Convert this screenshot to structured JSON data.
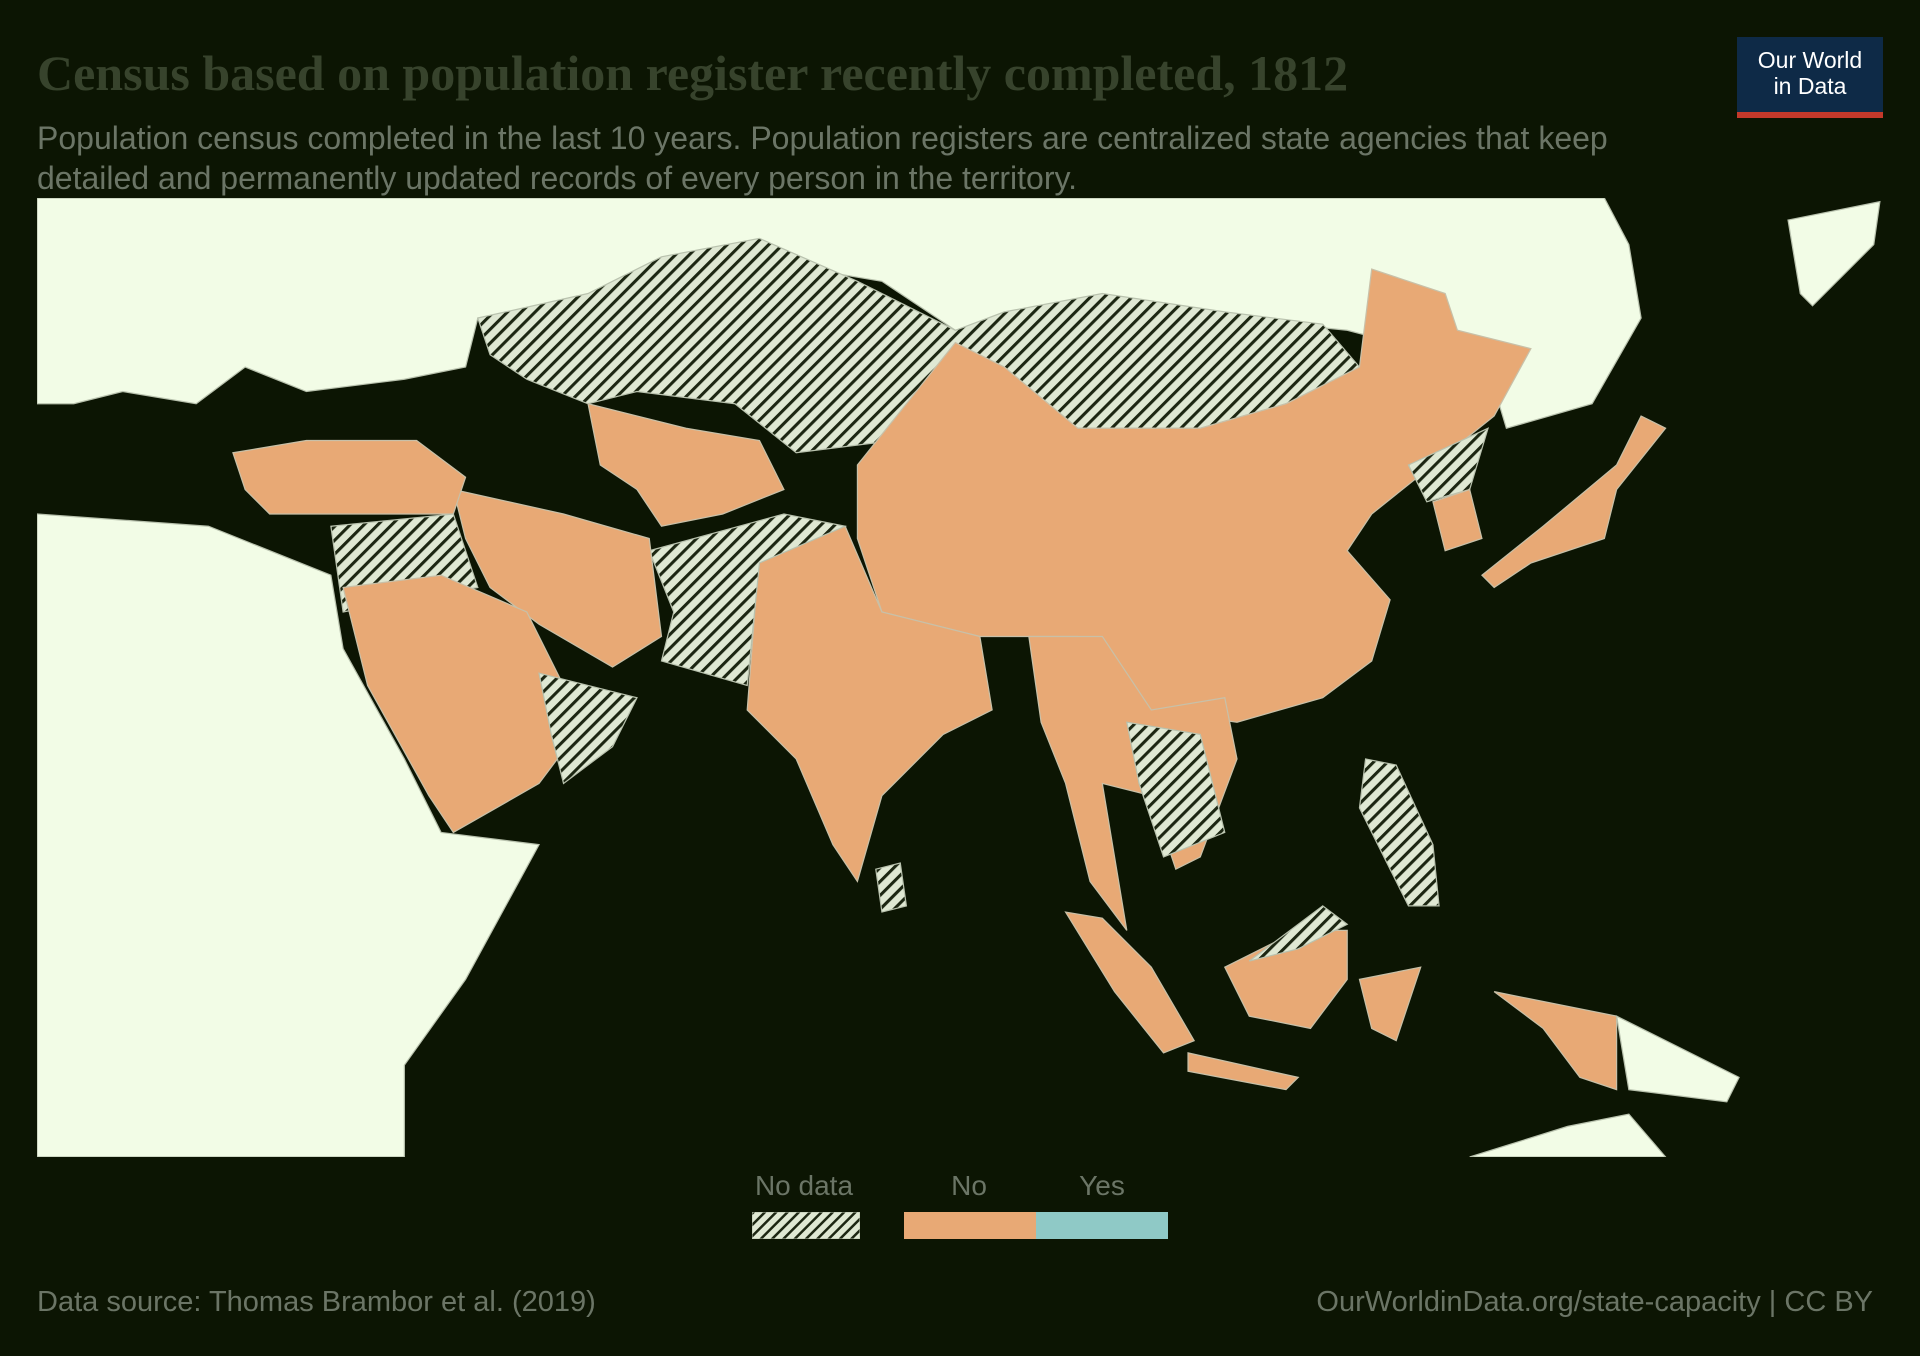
{
  "header": {
    "title": "Census based on population register recently completed, 1812",
    "subtitle": "Population census completed in the last 10 years. Population registers are centralized state agencies that keep detailed and permanently updated records of every person in the territory.",
    "logo": [
      "Our World",
      "in Data"
    ]
  },
  "legend": {
    "items": [
      "No data",
      "No",
      "Yes"
    ]
  },
  "footer": {
    "source": "Data source: Thomas Brambor et al. (2019)",
    "url": "OurWorldinData.org/state-capacity | CC BY"
  }
}
